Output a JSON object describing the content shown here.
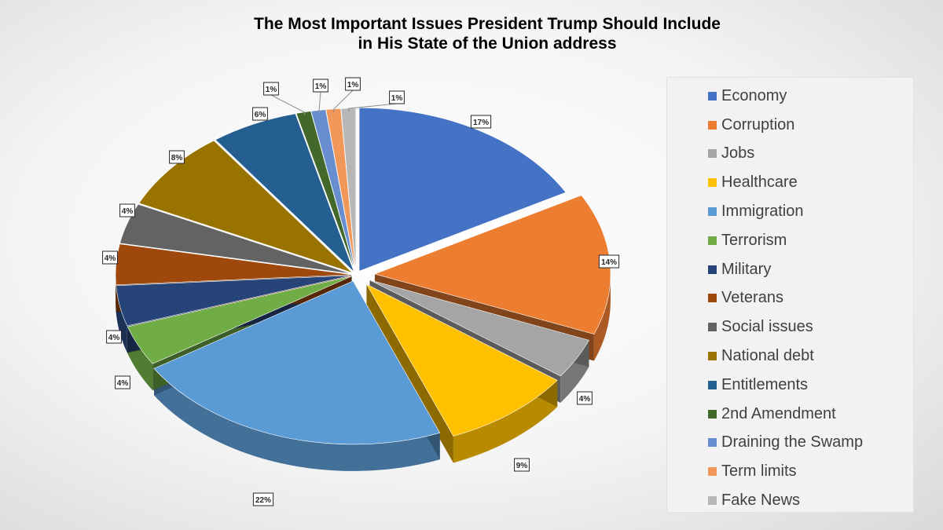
{
  "chart_data": {
    "type": "pie",
    "title": "The Most Important Issues President Trump Should Include in His State of the Union address",
    "title_lines": [
      "The Most Important Issues President Trump Should Include",
      "in His State of the Union address"
    ],
    "legend_position": "right",
    "categories": [
      "Economy",
      "Corruption",
      "Jobs",
      "Healthcare",
      "Immigration",
      "Terrorism",
      "Military",
      "Veterans",
      "Social issues",
      "National debt",
      "Entitlements",
      "2nd Amendment",
      "Draining the Swamp",
      "Term limits",
      "Fake News"
    ],
    "values": [
      17,
      14,
      4,
      9,
      22,
      4,
      4,
      4,
      4,
      8,
      6,
      1,
      1,
      1,
      1
    ],
    "data_labels": [
      "17%",
      "14%",
      "4%",
      "9%",
      "22%",
      "4%",
      "4%",
      "4%",
      "4%",
      "8%",
      "6%",
      "1%",
      "1%",
      "1%",
      "1%"
    ],
    "colors": [
      "#4472c4",
      "#ed7d31",
      "#a5a5a5",
      "#ffc000",
      "#5b9bd5",
      "#70ad47",
      "#264478",
      "#9e480e",
      "#636363",
      "#997300",
      "#255e91",
      "#43682b",
      "#698ed0",
      "#f1975a",
      "#b7b7b7"
    ]
  }
}
